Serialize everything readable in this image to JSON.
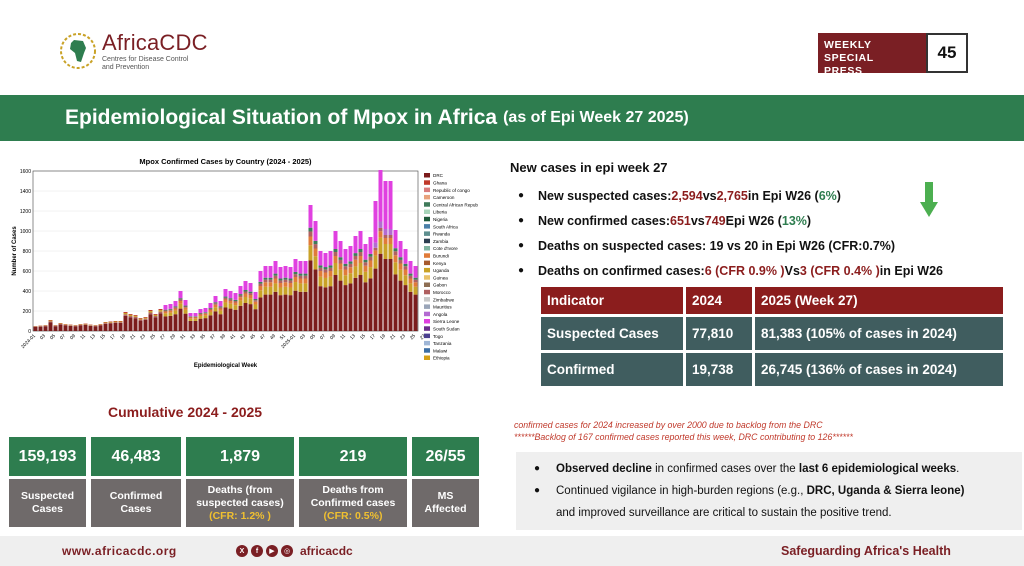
{
  "header": {
    "logo_name": "AfricaCDC",
    "logo_sub_line1": "Centres for Disease Control",
    "logo_sub_line2": "and Prevention",
    "briefing_line1": "WEEKLY SPECIAL",
    "briefing_line2": "PRESS BRIEFING",
    "briefing_number": "45"
  },
  "title": {
    "main": "Epidemiological Situation of Mpox in Africa",
    "sub": "(as of Epi Week 27 2025)"
  },
  "chart_data": {
    "type": "bar",
    "stacked": true,
    "title": "Mpox Confirmed Cases by Country (2024 - 2025)",
    "xlabel": "Epidemiological Week",
    "ylabel": "Number of Cases",
    "ylim": [
      0,
      1600
    ],
    "yticks": [
      0,
      200,
      400,
      600,
      800,
      1000,
      1200,
      1400,
      1600
    ],
    "xtick_labels": [
      "2024-01",
      "03",
      "05",
      "07",
      "09",
      "11",
      "13",
      "15",
      "17",
      "19",
      "21",
      "23",
      "25",
      "27",
      "29",
      "31",
      "33",
      "35",
      "37",
      "39",
      "41",
      "43",
      "45",
      "47",
      "49",
      "51",
      "2025-01",
      "03",
      "05",
      "07",
      "09",
      "11",
      "13",
      "15",
      "17",
      "19",
      "21",
      "23",
      "25",
      "27"
    ],
    "legend_position": "right",
    "totals": [
      50,
      55,
      60,
      110,
      60,
      80,
      70,
      65,
      60,
      70,
      75,
      65,
      60,
      70,
      90,
      95,
      100,
      100,
      190,
      170,
      160,
      130,
      140,
      210,
      170,
      220,
      260,
      270,
      300,
      400,
      310,
      180,
      180,
      220,
      230,
      280,
      350,
      300,
      420,
      400,
      380,
      450,
      500,
      480,
      390,
      600,
      650,
      650,
      700,
      640,
      650,
      640,
      720,
      700,
      700,
      1260,
      1100,
      800,
      780,
      800,
      1000,
      900,
      820,
      850,
      950,
      1000,
      870,
      940,
      1300,
      1610,
      1500,
      1500,
      1010,
      900,
      820,
      700,
      650
    ],
    "series": [
      {
        "name": "DRC",
        "color": "#7b1c1c"
      },
      {
        "name": "Ghana",
        "color": "#c0392b"
      },
      {
        "name": "Republic of congo",
        "color": "#d97c7c"
      },
      {
        "name": "Cameroon",
        "color": "#e8a27c"
      },
      {
        "name": "Central African Republic",
        "color": "#3f7a5a"
      },
      {
        "name": "Liberia",
        "color": "#a8d5ba"
      },
      {
        "name": "Nigeria",
        "color": "#1e5a3a"
      },
      {
        "name": "South Africa",
        "color": "#4a7fa8"
      },
      {
        "name": "Rwanda",
        "color": "#5e8f8f"
      },
      {
        "name": "Zambia",
        "color": "#2c3e50"
      },
      {
        "name": "Cote d'Ivore",
        "color": "#7fb3a0"
      },
      {
        "name": "Burundi",
        "color": "#e07b39"
      },
      {
        "name": "Kenya",
        "color": "#a65a2e"
      },
      {
        "name": "Uganda",
        "color": "#c9a227"
      },
      {
        "name": "Guinea",
        "color": "#e8c26a"
      },
      {
        "name": "Gabon",
        "color": "#8e6e53"
      },
      {
        "name": "Morocco",
        "color": "#b06060"
      },
      {
        "name": "Zimbabwe",
        "color": "#c8c8c8"
      },
      {
        "name": "Mauritius",
        "color": "#9aa5b8"
      },
      {
        "name": "Angola",
        "color": "#b36bd1"
      },
      {
        "name": "Sierra Leone",
        "color": "#e040e0"
      },
      {
        "name": "South Sudan",
        "color": "#6a2c8a"
      },
      {
        "name": "Togo",
        "color": "#4a3f8f"
      },
      {
        "name": "Tanzania",
        "color": "#9fb6d6"
      },
      {
        "name": "Malawi",
        "color": "#3b6ea5"
      },
      {
        "name": "Ethiopia",
        "color": "#d4a017"
      }
    ]
  },
  "new_cases": {
    "title": "New cases in epi week 27",
    "items": [
      {
        "label": "New suspected cases: ",
        "v1": "2,594",
        "mid": " vs ",
        "v2": "2,765",
        "tail": "  in Epi W26 (",
        "pct": "6%",
        "end": ")"
      },
      {
        "label": "New confirmed cases: ",
        "v1": "651",
        "mid": " vs ",
        "v2": "749",
        "tail": " Epi W26 (",
        "pct": "13%",
        "end": ")"
      },
      {
        "label": "Deaths on suspected cases: 19 vs 20 in Epi W26 (CFR:0.7%)",
        "v1": "",
        "mid": "",
        "v2": "",
        "tail": "",
        "pct": "",
        "end": ""
      },
      {
        "label": "Deaths on confirmed cases: ",
        "v1": "6 (CFR 0.9% )",
        "mid": " Vs ",
        "v2": "3 (CFR 0.4% )",
        "tail": " in Epi W26",
        "pct": "",
        "end": ""
      }
    ]
  },
  "indicator_table": {
    "headers": [
      "Indicator",
      "2024",
      "2025 (Week 27)"
    ],
    "rows": [
      [
        "Suspected Cases",
        "77,810",
        "81,383 (105% of cases in 2024)"
      ],
      [
        "Confirmed",
        "19,738",
        "26,745 (136% of cases in 2024)"
      ]
    ]
  },
  "cumulative": {
    "title": "Cumulative 2024 - 2025",
    "cards": [
      {
        "value": "159,193",
        "line1": "Suspected",
        "line2": "Cases",
        "cfr": ""
      },
      {
        "value": "46,483",
        "line1": "Confirmed",
        "line2": "Cases",
        "cfr": ""
      },
      {
        "value": "1,879",
        "line1": "Deaths (from",
        "line2": "suspected cases)",
        "cfr": "(CFR: 1.2% )"
      },
      {
        "value": "219",
        "line1": "Deaths from",
        "line2": "Confirmed cases",
        "cfr": "(CFR: 0.5%)"
      },
      {
        "value": "26/55",
        "line1": "MS",
        "line2": "Affected",
        "cfr": ""
      }
    ]
  },
  "notes": {
    "line1": "confirmed cases for 2024 increased by over 2000 due to backlog from the DRC",
    "line2": "******Backlog of 167 confirmed cases reported this week, DRC contributing to 126******"
  },
  "observations": {
    "item1_bold": "Observed decline",
    "item1_mid": " in confirmed cases over the ",
    "item1_bold2": "last 6 epidemiological weeks",
    "item1_end": ".",
    "item2_start": "Continued vigilance in high-burden regions (e.g., ",
    "item2_bold": "DRC, Uganda & Sierra leone)",
    "item2_cont": "and improved surveillance are critical to sustain the positive trend."
  },
  "footer": {
    "url": "www.africacdc.org",
    "handle": "africacdc",
    "tagline": "Safeguarding Africa's Health"
  }
}
